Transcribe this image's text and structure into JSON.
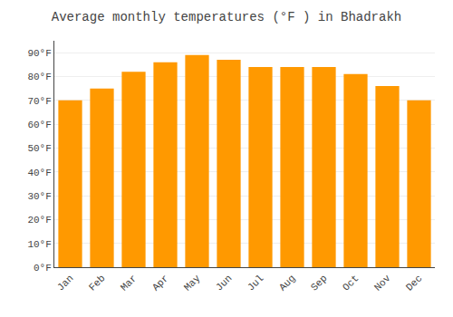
{
  "chart_data": {
    "type": "bar",
    "title": "Average monthly temperatures (°F ) in Bhadrakh",
    "categories": [
      "Jan",
      "Feb",
      "Mar",
      "Apr",
      "May",
      "Jun",
      "Jul",
      "Aug",
      "Sep",
      "Oct",
      "Nov",
      "Dec"
    ],
    "values": [
      70,
      75,
      82,
      86,
      89,
      87,
      84,
      84,
      84,
      81,
      76,
      70
    ],
    "color": "#FF9900",
    "ylim": [
      0,
      95
    ],
    "yticks": [
      {
        "value": 0,
        "label": "0°F"
      },
      {
        "value": 10,
        "label": "10°F"
      },
      {
        "value": 20,
        "label": "20°F"
      },
      {
        "value": 30,
        "label": "30°F"
      },
      {
        "value": 40,
        "label": "40°F"
      },
      {
        "value": 50,
        "label": "50°F"
      },
      {
        "value": 60,
        "label": "60°F"
      },
      {
        "value": 70,
        "label": "70°F"
      },
      {
        "value": 80,
        "label": "80°F"
      },
      {
        "value": 90,
        "label": "90°F"
      }
    ],
    "grid": true
  }
}
